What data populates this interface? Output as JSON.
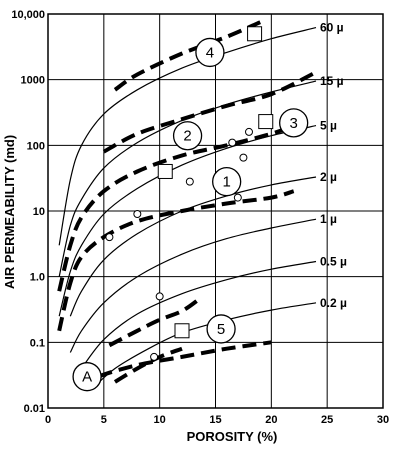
{
  "chart_data": {
    "type": "line",
    "title": "",
    "xlabel": "POROSITY (%)",
    "ylabel": "AIR PERMEABILITY (md)",
    "xlim": [
      0,
      30
    ],
    "ylim": [
      0.01,
      10000
    ],
    "yscale": "log",
    "grid": true,
    "x_ticks": [
      "0",
      "5",
      "10",
      "15",
      "20",
      "25",
      "30"
    ],
    "y_ticks": [
      "0.01",
      "0.1",
      "1.0",
      "10",
      "100",
      "1000",
      "10,000"
    ],
    "series": [
      {
        "name": "60 µ",
        "style": "thin",
        "x": [
          1,
          2,
          3,
          5,
          8,
          12,
          16,
          20,
          24
        ],
        "y": [
          3,
          30,
          100,
          300,
          700,
          1500,
          2600,
          4200,
          6200
        ]
      },
      {
        "name": "15 µ",
        "style": "thin",
        "x": [
          1,
          2,
          3,
          5,
          8,
          12,
          16,
          20,
          24
        ],
        "y": [
          1,
          6,
          15,
          45,
          110,
          240,
          420,
          650,
          950
        ]
      },
      {
        "name": "5 µ",
        "style": "thin",
        "x": [
          1,
          2,
          3,
          5,
          8,
          12,
          16,
          20,
          24
        ],
        "y": [
          0.25,
          1.2,
          3,
          9,
          22,
          50,
          90,
          140,
          200
        ]
      },
      {
        "name": "2 µ",
        "style": "thin",
        "x": [
          2,
          3,
          5,
          8,
          12,
          16,
          20,
          24
        ],
        "y": [
          0.25,
          0.6,
          1.8,
          4.5,
          10,
          17,
          25,
          33
        ]
      },
      {
        "name": "1 µ",
        "style": "thin",
        "x": [
          2,
          3,
          5,
          8,
          12,
          16,
          20,
          24
        ],
        "y": [
          0.07,
          0.15,
          0.4,
          1,
          2.2,
          3.8,
          5.5,
          7.5
        ]
      },
      {
        "name": "0.5 µ",
        "style": "thin",
        "x": [
          3,
          5,
          8,
          12,
          16,
          20,
          24
        ],
        "y": [
          0.04,
          0.11,
          0.27,
          0.55,
          0.9,
          1.3,
          1.7
        ]
      },
      {
        "name": "0.2 µ",
        "style": "thin",
        "x": [
          4,
          6,
          9,
          12,
          16,
          20,
          24
        ],
        "y": [
          0.02,
          0.04,
          0.08,
          0.14,
          0.22,
          0.31,
          0.4
        ]
      },
      {
        "name": "",
        "style": "thick",
        "x": [
          3,
          4.5,
          8,
          12,
          16,
          20
        ],
        "y": [
          0.02,
          0.03,
          0.045,
          0.06,
          0.08,
          0.1
        ]
      },
      {
        "name": "",
        "style": "thick",
        "x": [
          1,
          2,
          3,
          5,
          8,
          12,
          16,
          20,
          22
        ],
        "y": [
          0.6,
          3,
          8,
          20,
          40,
          70,
          100,
          150,
          200
        ]
      },
      {
        "name": "",
        "style": "thick",
        "x": [
          1,
          2,
          3,
          5,
          8,
          12,
          16,
          20,
          22
        ],
        "y": [
          0.15,
          0.8,
          2,
          4,
          7,
          10,
          13,
          16,
          20
        ]
      },
      {
        "name": "",
        "style": "thick",
        "x": [
          5,
          8,
          12,
          16,
          20,
          24
        ],
        "y": [
          80,
          150,
          250,
          400,
          600,
          1300
        ]
      },
      {
        "name": "",
        "style": "thick",
        "x": [
          6,
          8,
          12,
          16,
          19
        ],
        "y": [
          700,
          1200,
          2500,
          4500,
          7500
        ]
      },
      {
        "name": "",
        "style": "thick",
        "x": [
          5.5,
          8,
          10,
          12,
          13.5
        ],
        "y": [
          0.09,
          0.15,
          0.22,
          0.3,
          0.45
        ]
      },
      {
        "name": "",
        "style": "thick",
        "x": [
          6,
          8,
          10,
          12
        ],
        "y": [
          0.025,
          0.04,
          0.06,
          0.08
        ]
      }
    ],
    "regions": [
      {
        "label": "1",
        "x": 16,
        "y": 28
      },
      {
        "label": "2",
        "x": 12.5,
        "y": 140
      },
      {
        "label": "3",
        "x": 22,
        "y": 220
      },
      {
        "label": "4",
        "x": 14.5,
        "y": 2600
      },
      {
        "label": "5",
        "x": 15.5,
        "y": 0.16
      },
      {
        "label": "A",
        "x": 3.5,
        "y": 0.03
      }
    ],
    "data_points": {
      "circles": [
        [
          5.5,
          4
        ],
        [
          8,
          9
        ],
        [
          12.7,
          28
        ],
        [
          16.5,
          110
        ],
        [
          17,
          16
        ],
        [
          17.5,
          65
        ],
        [
          18,
          160
        ],
        [
          10,
          0.5
        ],
        [
          9.5,
          0.06
        ]
      ],
      "squares": [
        [
          10.5,
          40
        ],
        [
          19.5,
          230
        ],
        [
          18.5,
          5000
        ],
        [
          12,
          0.15
        ]
      ]
    }
  }
}
